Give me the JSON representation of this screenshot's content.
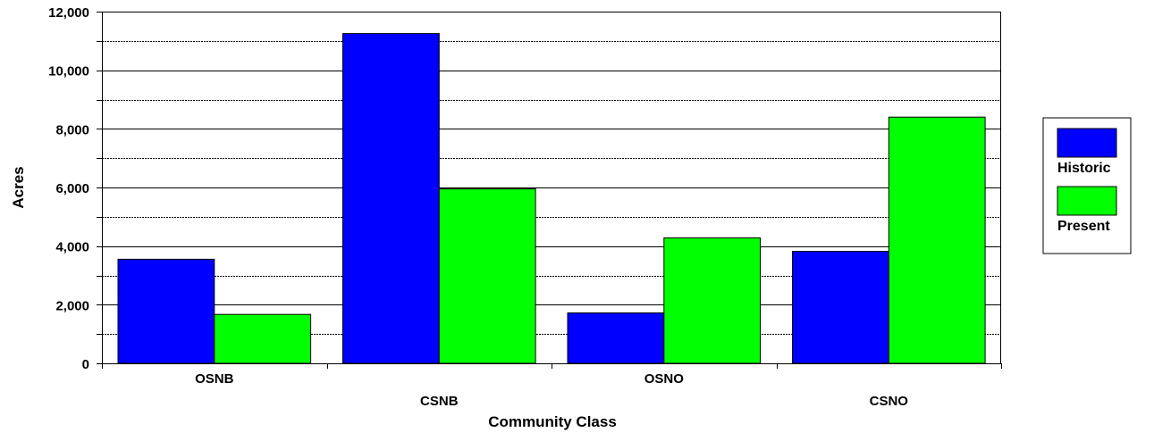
{
  "chart_data": {
    "type": "bar",
    "title": "",
    "xlabel": "Community Class",
    "ylabel": "Acres",
    "categories": [
      "OSNB",
      "CSNB",
      "OSNO",
      "CSNO"
    ],
    "series": [
      {
        "name": "Historic",
        "values": [
          3550,
          11250,
          1720,
          3820
        ],
        "color": "#0000ff"
      },
      {
        "name": "Present",
        "values": [
          1670,
          5950,
          4280,
          8400
        ],
        "color": "#00ff00"
      }
    ],
    "ylim": [
      0,
      12000
    ],
    "y_ticks": [
      {
        "value": 0,
        "label": "0"
      },
      {
        "value": 2000,
        "label": "2,000"
      },
      {
        "value": 4000,
        "label": "4,000"
      },
      {
        "value": 6000,
        "label": "6,000"
      },
      {
        "value": 8000,
        "label": "8,000"
      },
      {
        "value": 10000,
        "label": "10,000"
      },
      {
        "value": 12000,
        "label": "12,000"
      }
    ],
    "grid": true,
    "grid_step": 1000,
    "legend_position": "right"
  }
}
